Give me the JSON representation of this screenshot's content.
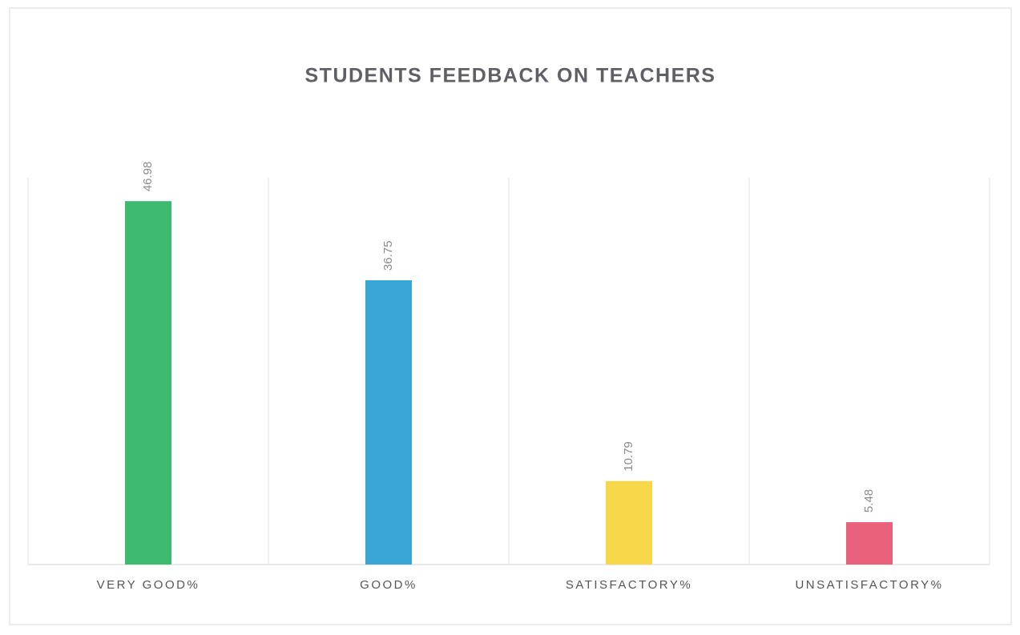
{
  "chart_data": {
    "type": "bar",
    "title": "STUDENTS FEEDBACK ON TEACHERS",
    "categories": [
      "VERY GOOD%",
      "GOOD%",
      "SATISFACTORY%",
      "UNSATISFACTORY%"
    ],
    "values": [
      46.98,
      36.75,
      10.79,
      5.48
    ],
    "colors": [
      "#3dba6f",
      "#3aa6d6",
      "#f6d84a",
      "#e8607c"
    ],
    "ylim": [
      0,
      50
    ]
  }
}
